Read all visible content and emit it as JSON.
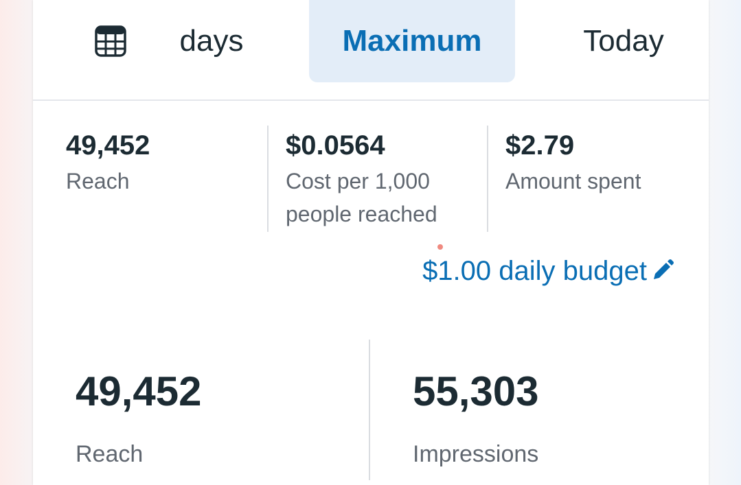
{
  "tabs": {
    "calendar_icon": "calendar-grid-icon",
    "days_label": "days",
    "maximum_label": "Maximum",
    "today_label": "Today"
  },
  "summary": {
    "reach": {
      "value": "49,452",
      "label": "Reach"
    },
    "cost": {
      "value": "$0.0564",
      "label": "Cost per 1,000 people reached"
    },
    "spent": {
      "value": "$2.79",
      "label": "Amount spent"
    }
  },
  "budget": {
    "label": "$1.00 daily budget",
    "icon": "pencil-icon"
  },
  "stats": {
    "reach": {
      "value": "49,452",
      "label": "Reach"
    },
    "impressions": {
      "value": "55,303",
      "label": "Impressions"
    }
  },
  "colors": {
    "accent": "#0a6eb4",
    "selected_tab_bg": "#e3edf8",
    "text_primary": "#1c2b33",
    "text_secondary": "#606770"
  }
}
